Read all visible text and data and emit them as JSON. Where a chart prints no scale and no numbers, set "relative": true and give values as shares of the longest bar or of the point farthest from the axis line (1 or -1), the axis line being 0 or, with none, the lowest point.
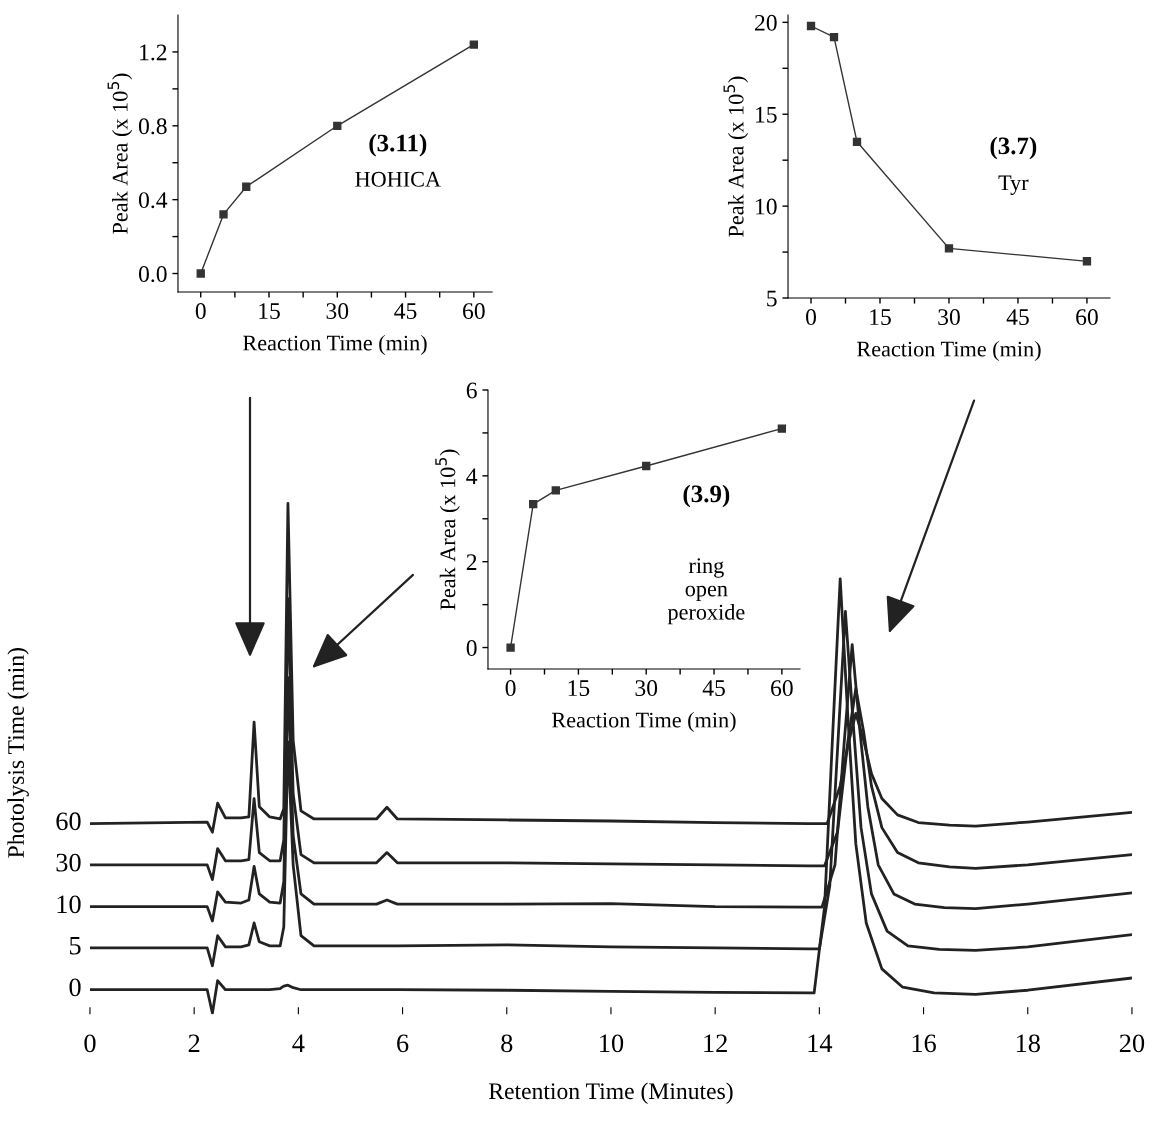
{
  "chart_data": [
    {
      "type": "line",
      "relative": true,
      "xlabel": "Retention Time (Minutes)",
      "ylabel": "Photolysis Time (min)",
      "xlim": [
        0,
        20
      ],
      "xticks": [
        0,
        2,
        4,
        6,
        8,
        10,
        12,
        14,
        16,
        18,
        20
      ],
      "series": [
        {
          "name": "0",
          "color": "#222222",
          "x": [
            0,
            2.25,
            2.35,
            2.45,
            2.6,
            2.9,
            3.05,
            3.15,
            3.25,
            3.45,
            3.65,
            3.72,
            3.8,
            3.9,
            4.05,
            4.3,
            5.5,
            5.7,
            5.9,
            8,
            10,
            12,
            13.8,
            13.9,
            14.1,
            14.25,
            14.4,
            14.55,
            14.7,
            14.9,
            15.2,
            15.6,
            16.2,
            17,
            18,
            20
          ],
          "values": [
            0.046,
            0.046,
            0,
            0.064,
            0.046,
            0.046,
            0.046,
            0.046,
            0.046,
            0.046,
            0.048,
            0.053,
            0.055,
            0.05,
            0.046,
            0.046,
            0.046,
            0.046,
            0.046,
            0.045,
            0.043,
            0.041,
            0.04,
            0.04,
            0.209,
            0.535,
            0.852,
            0.576,
            0.332,
            0.177,
            0.087,
            0.051,
            0.04,
            0.037,
            0.045,
            0.069
          ]
        },
        {
          "name": "5",
          "color": "#222222",
          "x": [
            0,
            2.25,
            2.35,
            2.45,
            2.6,
            2.9,
            3.05,
            3.15,
            3.25,
            3.45,
            3.65,
            3.72,
            3.8,
            3.9,
            4.05,
            4.3,
            5.5,
            5.7,
            5.9,
            8,
            10,
            12,
            13.8,
            14.0,
            14.2,
            14.35,
            14.5,
            14.65,
            14.8,
            15.0,
            15.3,
            15.7,
            16.3,
            17,
            18,
            20
          ],
          "values": [
            0.128,
            0.128,
            0.093,
            0.152,
            0.13,
            0.13,
            0.134,
            0.177,
            0.14,
            0.132,
            0.132,
            0.169,
            0.532,
            0.291,
            0.152,
            0.132,
            0.132,
            0.132,
            0.132,
            0.134,
            0.13,
            0.128,
            0.126,
            0.126,
            0.25,
            0.519,
            0.788,
            0.568,
            0.364,
            0.234,
            0.161,
            0.132,
            0.125,
            0.123,
            0.13,
            0.154
          ]
        },
        {
          "name": "10",
          "color": "#222222",
          "x": [
            0,
            2.25,
            2.35,
            2.45,
            2.6,
            2.9,
            3.05,
            3.15,
            3.25,
            3.45,
            3.65,
            3.72,
            3.8,
            3.9,
            4.05,
            4.3,
            5.5,
            5.7,
            5.9,
            8,
            10,
            12,
            13.8,
            14.05,
            14.3,
            14.48,
            14.63,
            14.78,
            14.93,
            15.13,
            15.43,
            15.83,
            16.4,
            17,
            18,
            20
          ],
          "values": [
            0.209,
            0.209,
            0.181,
            0.238,
            0.218,
            0.216,
            0.222,
            0.288,
            0.234,
            0.218,
            0.216,
            0.258,
            0.658,
            0.348,
            0.234,
            0.214,
            0.214,
            0.222,
            0.214,
            0.214,
            0.215,
            0.209,
            0.208,
            0.208,
            0.291,
            0.535,
            0.723,
            0.552,
            0.405,
            0.291,
            0.234,
            0.214,
            0.207,
            0.205,
            0.214,
            0.236
          ]
        },
        {
          "name": "30",
          "color": "#222222",
          "x": [
            0,
            2.25,
            2.35,
            2.45,
            2.6,
            2.9,
            3.05,
            3.15,
            3.25,
            3.45,
            3.65,
            3.72,
            3.8,
            3.9,
            4.05,
            4.3,
            5.5,
            5.7,
            5.9,
            8,
            10,
            12,
            13.8,
            14.1,
            14.35,
            14.55,
            14.7,
            14.85,
            15.0,
            15.2,
            15.5,
            15.9,
            16.5,
            17,
            18,
            20
          ],
          "values": [
            0.291,
            0.291,
            0.262,
            0.323,
            0.299,
            0.299,
            0.301,
            0.421,
            0.315,
            0.299,
            0.299,
            0.34,
            0.813,
            0.43,
            0.311,
            0.295,
            0.295,
            0.315,
            0.295,
            0.295,
            0.293,
            0.291,
            0.289,
            0.289,
            0.356,
            0.535,
            0.637,
            0.552,
            0.446,
            0.364,
            0.315,
            0.295,
            0.287,
            0.284,
            0.291,
            0.311
          ]
        },
        {
          "name": "60",
          "color": "#222222",
          "x": [
            0,
            2.25,
            2.35,
            2.45,
            2.6,
            2.9,
            3.05,
            3.15,
            3.25,
            3.45,
            3.65,
            3.72,
            3.8,
            3.9,
            4.05,
            4.3,
            5.5,
            5.7,
            5.9,
            8,
            10,
            12,
            13.8,
            14.15,
            14.4,
            14.55,
            14.7,
            14.85,
            15.0,
            15.2,
            15.5,
            15.9,
            16.5,
            17,
            18,
            20
          ],
          "values": [
            0.372,
            0.375,
            0.355,
            0.412,
            0.383,
            0.383,
            0.385,
            0.571,
            0.405,
            0.385,
            0.381,
            0.401,
            1,
            0.535,
            0.397,
            0.381,
            0.381,
            0.404,
            0.381,
            0.379,
            0.377,
            0.374,
            0.372,
            0.372,
            0.446,
            0.527,
            0.588,
            0.535,
            0.47,
            0.421,
            0.389,
            0.374,
            0.369,
            0.367,
            0.375,
            0.394
          ]
        }
      ]
    },
    {
      "type": "line",
      "marker": "square",
      "xlabel": "Reaction Time (min)",
      "ylabel": "Peak Area (x 10$^{5}$)",
      "annotations": [
        "(3.11)",
        "HOHICA"
      ],
      "xlim": [
        -5,
        64
      ],
      "xticks": [
        0,
        {
          "value": 7.5,
          "label": null
        },
        15,
        {
          "value": 22.5,
          "label": null
        },
        30,
        {
          "value": 37.5,
          "label": null
        },
        45,
        {
          "value": 52.5,
          "label": null
        },
        60
      ],
      "ylim": [
        -0.1,
        1.4
      ],
      "yticks": [
        {
          "value": 0,
          "label": "0.0"
        },
        {
          "value": 0.2,
          "label": null
        },
        0.4,
        {
          "value": 0.6,
          "label": null
        },
        0.8,
        {
          "value": 1.0,
          "label": null
        },
        1.2
      ],
      "series": [
        {
          "color": "#333333",
          "x": [
            0,
            5,
            10,
            30,
            60
          ],
          "values": [
            0,
            0.32,
            0.47,
            0.8,
            1.24
          ]
        }
      ]
    },
    {
      "type": "line",
      "marker": "square",
      "xlabel": "Reaction Time (min)",
      "ylabel": "Peak Area (x 10$^{5}$)",
      "annotations": [
        "(3.7)",
        "Tyr"
      ],
      "xlim": [
        -5,
        65
      ],
      "xticks": [
        0,
        {
          "value": 7.5,
          "label": null
        },
        15,
        {
          "value": 22.5,
          "label": null
        },
        30,
        {
          "value": 37.5,
          "label": null
        },
        45,
        {
          "value": 52.5,
          "label": null
        },
        60
      ],
      "ylim": [
        5,
        20.4
      ],
      "yticks": [
        5,
        {
          "value": 7.5,
          "label": null
        },
        10,
        {
          "value": 12.5,
          "label": null
        },
        15,
        {
          "value": 17.5,
          "label": null
        },
        20
      ],
      "series": [
        {
          "color": "#333333",
          "x": [
            0,
            5,
            10,
            30,
            60
          ],
          "values": [
            19.8,
            19.2,
            13.5,
            7.7,
            7.0
          ]
        }
      ]
    },
    {
      "type": "line",
      "marker": "square",
      "xlabel": "Reaction Time (min)",
      "ylabel": "Peak Area (x 10$^{5}$)",
      "annotations": [
        "(3.9)",
        "ring\nopen\nperoxide"
      ],
      "xlim": [
        -5,
        64
      ],
      "xticks": [
        0,
        {
          "value": 7.5,
          "label": null
        },
        15,
        {
          "value": 22.5,
          "label": null
        },
        30,
        {
          "value": 37.5,
          "label": null
        },
        45,
        {
          "value": 52.5,
          "label": null
        },
        60
      ],
      "ylim": [
        -0.5,
        6
      ],
      "yticks": [
        0,
        {
          "value": 1,
          "label": null
        },
        2,
        {
          "value": 3,
          "label": null
        },
        4,
        {
          "value": 5,
          "label": null
        },
        6
      ],
      "series": [
        {
          "color": "#333333",
          "x": [
            0,
            5,
            10,
            30,
            60
          ],
          "values": [
            0,
            3.34,
            3.66,
            4.23,
            5.1
          ]
        }
      ]
    }
  ]
}
